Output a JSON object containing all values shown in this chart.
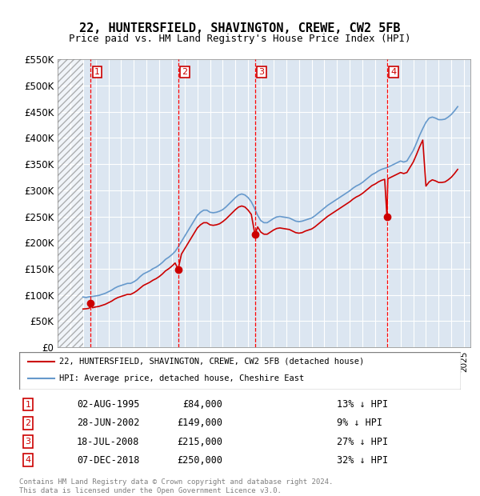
{
  "title": "22, HUNTERSFIELD, SHAVINGTON, CREWE, CW2 5FB",
  "subtitle": "Price paid vs. HM Land Registry's House Price Index (HPI)",
  "ylabel_ticks": [
    "£0",
    "£50K",
    "£100K",
    "£150K",
    "£200K",
    "£250K",
    "£300K",
    "£350K",
    "£400K",
    "£450K",
    "£500K",
    "£550K"
  ],
  "ytick_values": [
    0,
    50000,
    100000,
    150000,
    200000,
    250000,
    300000,
    350000,
    400000,
    450000,
    500000,
    550000
  ],
  "xmin": 1993.0,
  "xmax": 2025.5,
  "ymin": 0,
  "ymax": 550000,
  "hpi_color": "#6699cc",
  "price_color": "#cc0000",
  "sales": [
    {
      "label": "1",
      "date_str": "02-AUG-1995",
      "year": 1995.58,
      "price": 84000
    },
    {
      "label": "2",
      "date_str": "28-JUN-2002",
      "year": 2002.49,
      "price": 149000
    },
    {
      "label": "3",
      "date_str": "18-JUL-2008",
      "year": 2008.54,
      "price": 215000
    },
    {
      "label": "4",
      "date_str": "07-DEC-2018",
      "year": 2018.93,
      "price": 250000
    }
  ],
  "sale_labels": [
    {
      "num": "1",
      "date": "02-AUG-1995",
      "price": "£84,000",
      "pct": "13% ↓ HPI"
    },
    {
      "num": "2",
      "date": "28-JUN-2002",
      "price": "£149,000",
      "pct": "9% ↓ HPI"
    },
    {
      "num": "3",
      "date": "18-JUL-2008",
      "price": "£215,000",
      "pct": "27% ↓ HPI"
    },
    {
      "num": "4",
      "date": "07-DEC-2018",
      "price": "£250,000",
      "pct": "32% ↓ HPI"
    }
  ],
  "legend_line1": "22, HUNTERSFIELD, SHAVINGTON, CREWE, CW2 5FB (detached house)",
  "legend_line2": "HPI: Average price, detached house, Cheshire East",
  "footnote1": "Contains HM Land Registry data © Crown copyright and database right 2024.",
  "footnote2": "This data is licensed under the Open Government Licence v3.0.",
  "hpi_data": {
    "years": [
      1995.0,
      1995.25,
      1995.5,
      1995.75,
      1996.0,
      1996.25,
      1996.5,
      1996.75,
      1997.0,
      1997.25,
      1997.5,
      1997.75,
      1998.0,
      1998.25,
      1998.5,
      1998.75,
      1999.0,
      1999.25,
      1999.5,
      1999.75,
      2000.0,
      2000.25,
      2000.5,
      2000.75,
      2001.0,
      2001.25,
      2001.5,
      2001.75,
      2002.0,
      2002.25,
      2002.5,
      2002.75,
      2003.0,
      2003.25,
      2003.5,
      2003.75,
      2004.0,
      2004.25,
      2004.5,
      2004.75,
      2005.0,
      2005.25,
      2005.5,
      2005.75,
      2006.0,
      2006.25,
      2006.5,
      2006.75,
      2007.0,
      2007.25,
      2007.5,
      2007.75,
      2008.0,
      2008.25,
      2008.5,
      2008.75,
      2009.0,
      2009.25,
      2009.5,
      2009.75,
      2010.0,
      2010.25,
      2010.5,
      2010.75,
      2011.0,
      2011.25,
      2011.5,
      2011.75,
      2012.0,
      2012.25,
      2012.5,
      2012.75,
      2013.0,
      2013.25,
      2013.5,
      2013.75,
      2014.0,
      2014.25,
      2014.5,
      2014.75,
      2015.0,
      2015.25,
      2015.5,
      2015.75,
      2016.0,
      2016.25,
      2016.5,
      2016.75,
      2017.0,
      2017.25,
      2017.5,
      2017.75,
      2018.0,
      2018.25,
      2018.5,
      2018.75,
      2019.0,
      2019.25,
      2019.5,
      2019.75,
      2020.0,
      2020.25,
      2020.5,
      2020.75,
      2021.0,
      2021.25,
      2021.5,
      2021.75,
      2022.0,
      2022.25,
      2022.5,
      2022.75,
      2023.0,
      2023.25,
      2023.5,
      2023.75,
      2024.0,
      2024.25,
      2024.5
    ],
    "values": [
      96000,
      95000,
      96500,
      97000,
      98000,
      99000,
      101000,
      103000,
      106000,
      109000,
      113000,
      116000,
      118000,
      120000,
      122000,
      122000,
      125000,
      129000,
      135000,
      140000,
      143000,
      146000,
      150000,
      153000,
      157000,
      162000,
      168000,
      172000,
      177000,
      183000,
      192000,
      202000,
      212000,
      222000,
      232000,
      242000,
      252000,
      258000,
      262000,
      262000,
      258000,
      257000,
      258000,
      260000,
      263000,
      268000,
      274000,
      280000,
      286000,
      291000,
      293000,
      291000,
      286000,
      278000,
      266000,
      252000,
      242000,
      238000,
      238000,
      242000,
      246000,
      249000,
      250000,
      249000,
      248000,
      247000,
      244000,
      241000,
      240000,
      241000,
      243000,
      245000,
      247000,
      251000,
      256000,
      261000,
      266000,
      271000,
      275000,
      279000,
      283000,
      287000,
      291000,
      295000,
      299000,
      304000,
      308000,
      311000,
      315000,
      320000,
      325000,
      330000,
      333000,
      337000,
      340000,
      342000,
      344000,
      347000,
      350000,
      353000,
      356000,
      354000,
      356000,
      366000,
      376000,
      390000,
      405000,
      418000,
      430000,
      438000,
      440000,
      438000,
      435000,
      435000,
      436000,
      440000,
      445000,
      452000,
      460000
    ]
  },
  "price_data": {
    "years": [
      1995.0,
      1995.25,
      1995.5,
      1995.58,
      1995.75,
      1996.0,
      1996.25,
      1996.5,
      1996.75,
      1997.0,
      1997.25,
      1997.5,
      1997.75,
      1998.0,
      1998.25,
      1998.5,
      1998.75,
      1999.0,
      1999.25,
      1999.5,
      1999.75,
      2000.0,
      2000.25,
      2000.5,
      2000.75,
      2001.0,
      2001.25,
      2001.5,
      2001.75,
      2002.0,
      2002.25,
      2002.49,
      2002.75,
      2003.0,
      2003.25,
      2003.5,
      2003.75,
      2004.0,
      2004.25,
      2004.5,
      2004.75,
      2005.0,
      2005.25,
      2005.5,
      2005.75,
      2006.0,
      2006.25,
      2006.5,
      2006.75,
      2007.0,
      2007.25,
      2007.5,
      2007.75,
      2008.0,
      2008.25,
      2008.54,
      2008.75,
      2009.0,
      2009.25,
      2009.5,
      2009.75,
      2010.0,
      2010.25,
      2010.5,
      2010.75,
      2011.0,
      2011.25,
      2011.5,
      2011.75,
      2012.0,
      2012.25,
      2012.5,
      2012.75,
      2013.0,
      2013.25,
      2013.5,
      2013.75,
      2014.0,
      2014.25,
      2014.5,
      2014.75,
      2015.0,
      2015.25,
      2015.5,
      2015.75,
      2016.0,
      2016.25,
      2016.5,
      2016.75,
      2017.0,
      2017.25,
      2017.5,
      2017.75,
      2018.0,
      2018.25,
      2018.5,
      2018.75,
      2018.93,
      2019.0,
      2019.25,
      2019.5,
      2019.75,
      2020.0,
      2020.25,
      2020.5,
      2020.75,
      2021.0,
      2021.25,
      2021.5,
      2021.75,
      2022.0,
      2022.25,
      2022.5,
      2022.75,
      2023.0,
      2023.25,
      2023.5,
      2023.75,
      2024.0,
      2024.25,
      2024.5
    ],
    "values": [
      73000,
      73500,
      74500,
      84000,
      75500,
      77000,
      78000,
      80000,
      82000,
      85000,
      88000,
      92000,
      95000,
      97000,
      99000,
      101000,
      101000,
      104000,
      108000,
      113000,
      118000,
      121000,
      124000,
      128000,
      131000,
      135000,
      140000,
      146000,
      150000,
      155000,
      161000,
      149000,
      178000,
      188000,
      198000,
      208000,
      218000,
      228000,
      234000,
      238000,
      238000,
      234000,
      233000,
      234000,
      236000,
      240000,
      245000,
      251000,
      257000,
      263000,
      268000,
      270000,
      268000,
      262000,
      254000,
      215000,
      230000,
      220000,
      216000,
      216000,
      220000,
      224000,
      227000,
      228000,
      227000,
      226000,
      225000,
      222000,
      219000,
      218000,
      219000,
      222000,
      224000,
      226000,
      230000,
      235000,
      240000,
      245000,
      250000,
      254000,
      258000,
      262000,
      266000,
      270000,
      274000,
      278000,
      283000,
      287000,
      290000,
      294000,
      299000,
      304000,
      309000,
      312000,
      316000,
      319000,
      321000,
      250000,
      322000,
      325000,
      328000,
      331000,
      334000,
      332000,
      334000,
      344000,
      354000,
      368000,
      383000,
      396000,
      308000,
      316000,
      320000,
      318000,
      315000,
      315000,
      316000,
      320000,
      325000,
      332000,
      340000
    ]
  }
}
